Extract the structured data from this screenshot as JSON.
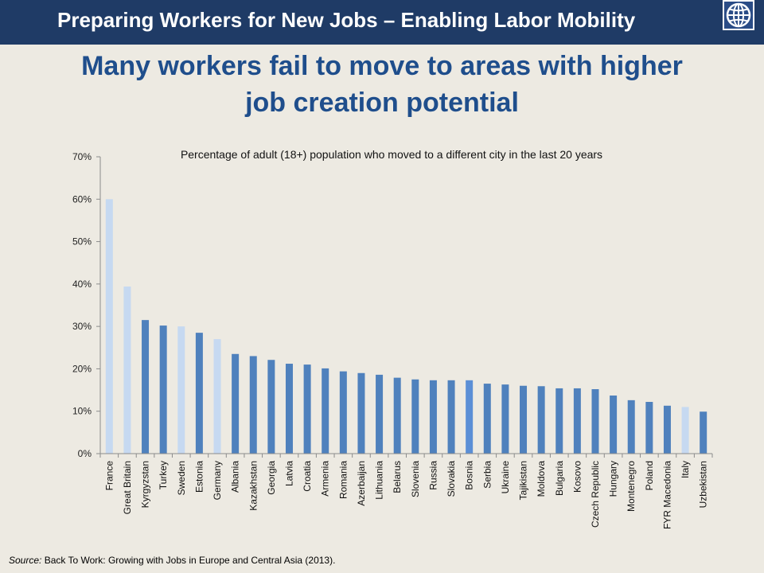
{
  "header": {
    "title": "Preparing Workers for New Jobs – Enabling Labor Mobility"
  },
  "slide": {
    "headline_line1": "Many workers fail to move to areas with higher",
    "headline_line2": "job creation potential"
  },
  "source": {
    "label": "Source:",
    "text": "Back To Work: Growing with Jobs in Europe and Central Asia (2013)."
  },
  "colors": {
    "banner": "#1f3b66",
    "headline": "#1f4e8c",
    "bar_default": "#4f81bd",
    "bar_light": "#c6d9f1",
    "bar_highlight": "#5b8fd6",
    "background": "#edeae2"
  },
  "icons": {
    "logo": "globe-icon"
  },
  "chart_data": {
    "type": "bar",
    "title": "Percentage of adult (18+) population who moved to a different city in the last 20 years",
    "xlabel": "",
    "ylabel": "",
    "ylim": [
      0,
      70
    ],
    "yticks": [
      "0%",
      "10%",
      "20%",
      "30%",
      "40%",
      "50%",
      "60%",
      "70%"
    ],
    "grid": false,
    "categories": [
      "France",
      "Great Britain",
      "Kyrgyzstan",
      "Turkey",
      "Sweden",
      "Estonia",
      "Germany",
      "Albania",
      "Kazakhstan",
      "Georgia",
      "Latvia",
      "Croatia",
      "Armenia",
      "Romania",
      "Azerbaijan",
      "Lithuania",
      "Belarus",
      "Slovenia",
      "Russia",
      "Slovakia",
      "Bosnia",
      "Serbia",
      "Ukraine",
      "Tajikistan",
      "Moldova",
      "Bulgaria",
      "Kosovo",
      "Czech Republic",
      "Hungary",
      "Montenegro",
      "Poland",
      "FYR Macedonia",
      "Italy",
      "Uzbekistan"
    ],
    "values": [
      60,
      39.4,
      31.5,
      30.2,
      30,
      28.5,
      27,
      23.5,
      23,
      22.1,
      21.2,
      21,
      20.1,
      19.4,
      19,
      18.6,
      17.9,
      17.5,
      17.3,
      17.3,
      17.3,
      16.5,
      16.3,
      16,
      15.9,
      15.4,
      15.4,
      15.2,
      13.7,
      12.6,
      12.2,
      11.3,
      11,
      9.9
    ],
    "bar_styles": [
      "light",
      "light",
      "default",
      "default",
      "light",
      "default",
      "light",
      "default",
      "default",
      "default",
      "default",
      "default",
      "default",
      "default",
      "default",
      "default",
      "default",
      "default",
      "default",
      "default",
      "highlight",
      "default",
      "default",
      "default",
      "default",
      "default",
      "default",
      "default",
      "default",
      "default",
      "default",
      "default",
      "light",
      "default"
    ]
  }
}
